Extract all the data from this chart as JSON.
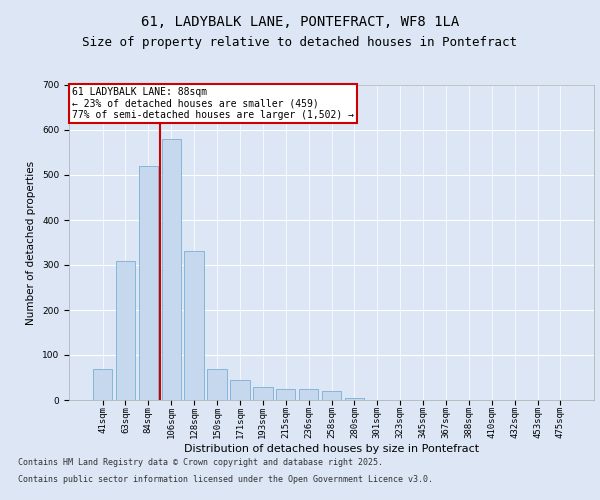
{
  "title_line1": "61, LADYBALK LANE, PONTEFRACT, WF8 1LA",
  "title_line2": "Size of property relative to detached houses in Pontefract",
  "xlabel": "Distribution of detached houses by size in Pontefract",
  "ylabel": "Number of detached properties",
  "categories": [
    "41sqm",
    "63sqm",
    "84sqm",
    "106sqm",
    "128sqm",
    "150sqm",
    "171sqm",
    "193sqm",
    "215sqm",
    "236sqm",
    "258sqm",
    "280sqm",
    "301sqm",
    "323sqm",
    "345sqm",
    "367sqm",
    "388sqm",
    "410sqm",
    "432sqm",
    "453sqm",
    "475sqm"
  ],
  "values": [
    70,
    310,
    520,
    580,
    330,
    70,
    45,
    30,
    25,
    25,
    20,
    5,
    0,
    0,
    0,
    0,
    0,
    0,
    0,
    0,
    0
  ],
  "bar_color": "#c5d8ee",
  "bar_edge_color": "#7bafd4",
  "vline_color": "#cc0000",
  "vline_pos": 2.5,
  "annotation_text": "61 LADYBALK LANE: 88sqm\n← 23% of detached houses are smaller (459)\n77% of semi-detached houses are larger (1,502) →",
  "annotation_box_edge_color": "#cc0000",
  "ylim": [
    0,
    700
  ],
  "yticks": [
    0,
    100,
    200,
    300,
    400,
    500,
    600,
    700
  ],
  "bg_color": "#dce6f5",
  "plot_bg_color": "#dce6f5",
  "footer_line1": "Contains HM Land Registry data © Crown copyright and database right 2025.",
  "footer_line2": "Contains public sector information licensed under the Open Government Licence v3.0.",
  "title_fontsize": 10,
  "subtitle_fontsize": 9,
  "ylabel_fontsize": 7.5,
  "xlabel_fontsize": 8,
  "tick_fontsize": 6.5,
  "annotation_fontsize": 7,
  "footer_fontsize": 6
}
